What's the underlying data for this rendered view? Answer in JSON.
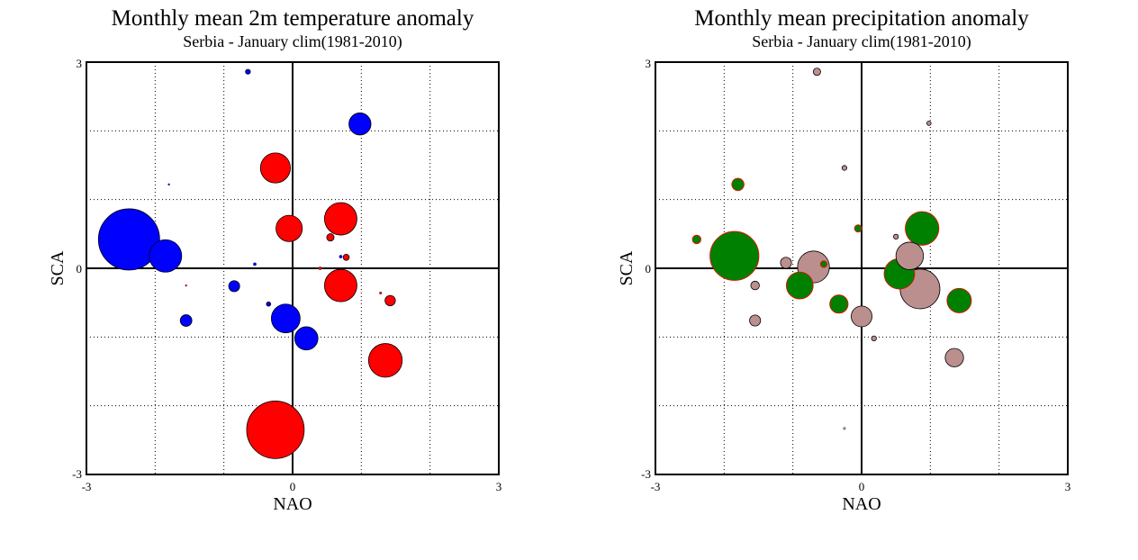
{
  "chart_data": [
    {
      "type": "scatter",
      "title": "Monthly mean 2m temperature anomaly",
      "subtitle": "Serbia - January  clim(1981-2010)",
      "xlabel": "NAO",
      "ylabel": "SCA",
      "xlim": [
        -3,
        3
      ],
      "ylim": [
        -3,
        3
      ],
      "x_ticks": [
        "-3",
        "0",
        "3"
      ],
      "y_ticks": [
        "-3",
        "0",
        "3"
      ],
      "grid": true,
      "gridlines": [
        -2,
        -1,
        1,
        2
      ],
      "colors": {
        "positive": "#ff0000",
        "negative": "#0000ff"
      },
      "points": [
        {
          "x": -2.38,
          "y": 0.42,
          "size": 1.0,
          "sign": "negative"
        },
        {
          "x": -1.85,
          "y": 0.18,
          "size": 0.53,
          "sign": "negative"
        },
        {
          "x": -0.85,
          "y": -0.26,
          "size": 0.18,
          "sign": "negative"
        },
        {
          "x": -1.55,
          "y": -0.76,
          "size": 0.19,
          "sign": "negative"
        },
        {
          "x": -0.35,
          "y": -0.52,
          "size": 0.07,
          "sign": "negative"
        },
        {
          "x": -0.55,
          "y": 0.06,
          "size": 0.05,
          "sign": "negative"
        },
        {
          "x": -0.1,
          "y": -0.73,
          "size": 0.47,
          "sign": "negative"
        },
        {
          "x": 0.2,
          "y": -1.02,
          "size": 0.38,
          "sign": "negative"
        },
        {
          "x": 0.98,
          "y": 2.1,
          "size": 0.36,
          "sign": "negative"
        },
        {
          "x": -0.65,
          "y": 2.86,
          "size": 0.08,
          "sign": "negative"
        },
        {
          "x": -1.8,
          "y": 1.22,
          "size": 0.03,
          "sign": "negative"
        },
        {
          "x": 0.7,
          "y": 0.17,
          "size": 0.05,
          "sign": "negative"
        },
        {
          "x": -0.25,
          "y": 1.46,
          "size": 0.49,
          "sign": "positive"
        },
        {
          "x": -0.05,
          "y": 0.58,
          "size": 0.43,
          "sign": "positive"
        },
        {
          "x": 0.7,
          "y": 0.72,
          "size": 0.53,
          "sign": "positive"
        },
        {
          "x": 0.55,
          "y": 0.45,
          "size": 0.12,
          "sign": "positive"
        },
        {
          "x": 0.78,
          "y": 0.16,
          "size": 0.1,
          "sign": "positive"
        },
        {
          "x": 0.4,
          "y": 0.0,
          "size": 0.05,
          "sign": "positive"
        },
        {
          "x": 0.7,
          "y": -0.25,
          "size": 0.53,
          "sign": "positive"
        },
        {
          "x": 1.28,
          "y": -0.36,
          "size": 0.04,
          "sign": "positive"
        },
        {
          "x": 1.42,
          "y": -0.47,
          "size": 0.17,
          "sign": "positive"
        },
        {
          "x": 1.35,
          "y": -1.34,
          "size": 0.55,
          "sign": "positive"
        },
        {
          "x": -0.25,
          "y": -2.35,
          "size": 0.94,
          "sign": "positive"
        },
        {
          "x": -1.55,
          "y": -0.25,
          "size": 0.02,
          "sign": "positive"
        }
      ]
    },
    {
      "type": "scatter",
      "title": "Monthly mean precipitation anomaly",
      "subtitle": "Serbia - January  clim(1981-2010)",
      "xlabel": "NAO",
      "ylabel": "SCA",
      "xlim": [
        -3,
        3
      ],
      "ylim": [
        -3,
        3
      ],
      "x_ticks": [
        "-3",
        "0",
        "3"
      ],
      "y_ticks": [
        "-3",
        "0",
        "3"
      ],
      "grid": true,
      "gridlines": [
        -2,
        -1,
        1,
        2
      ],
      "colors": {
        "positive": "#008000",
        "negative": "#bc8f8f"
      },
      "points": [
        {
          "x": -2.4,
          "y": 0.42,
          "size": 0.14,
          "sign": "positive"
        },
        {
          "x": -1.8,
          "y": 1.22,
          "size": 0.2,
          "sign": "positive"
        },
        {
          "x": -1.85,
          "y": 0.18,
          "size": 0.8,
          "sign": "positive"
        },
        {
          "x": -0.9,
          "y": -0.25,
          "size": 0.44,
          "sign": "positive"
        },
        {
          "x": -0.55,
          "y": 0.06,
          "size": 0.11,
          "sign": "positive"
        },
        {
          "x": -0.33,
          "y": -0.52,
          "size": 0.3,
          "sign": "positive"
        },
        {
          "x": -0.05,
          "y": 0.58,
          "size": 0.12,
          "sign": "positive"
        },
        {
          "x": 0.55,
          "y": -0.08,
          "size": 0.5,
          "sign": "positive"
        },
        {
          "x": 0.88,
          "y": 0.58,
          "size": 0.55,
          "sign": "positive"
        },
        {
          "x": 1.42,
          "y": -0.47,
          "size": 0.4,
          "sign": "positive"
        },
        {
          "x": -1.55,
          "y": -0.25,
          "size": 0.14,
          "sign": "negative"
        },
        {
          "x": -1.55,
          "y": -0.76,
          "size": 0.18,
          "sign": "negative"
        },
        {
          "x": -1.1,
          "y": 0.08,
          "size": 0.18,
          "sign": "negative"
        },
        {
          "x": -0.7,
          "y": 0.02,
          "size": 0.52,
          "sign": "negative"
        },
        {
          "x": -0.25,
          "y": 1.46,
          "size": 0.08,
          "sign": "negative"
        },
        {
          "x": -0.65,
          "y": 2.86,
          "size": 0.12,
          "sign": "negative"
        },
        {
          "x": 0.0,
          "y": -0.7,
          "size": 0.34,
          "sign": "negative"
        },
        {
          "x": 0.18,
          "y": -1.02,
          "size": 0.08,
          "sign": "negative"
        },
        {
          "x": 0.5,
          "y": 0.46,
          "size": 0.08,
          "sign": "negative"
        },
        {
          "x": 0.7,
          "y": 0.18,
          "size": 0.45,
          "sign": "negative"
        },
        {
          "x": 0.85,
          "y": -0.3,
          "size": 0.65,
          "sign": "negative"
        },
        {
          "x": 0.98,
          "y": 2.11,
          "size": 0.07,
          "sign": "negative"
        },
        {
          "x": 1.35,
          "y": -1.3,
          "size": 0.3,
          "sign": "negative"
        },
        {
          "x": -0.25,
          "y": -2.33,
          "size": 0.04,
          "sign": "negative"
        }
      ]
    }
  ]
}
